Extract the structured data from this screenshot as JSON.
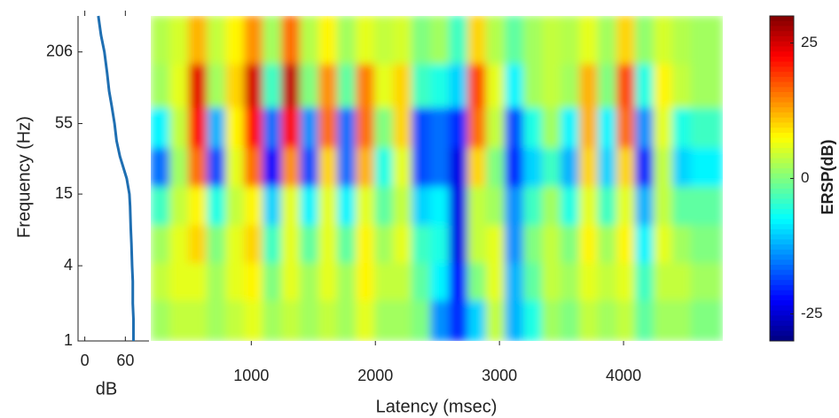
{
  "chart_data": [
    {
      "type": "line",
      "xlabel": "dB",
      "ylabel": "Frequency (Hz)",
      "xlim": [
        -10,
        95
      ],
      "xticks": [
        0,
        60
      ],
      "ylim": [
        1,
        400
      ],
      "yticks": [
        1,
        4,
        15,
        55,
        206
      ],
      "ylog": true,
      "y": [
        1,
        1.5,
        2,
        3,
        4,
        6,
        8,
        12,
        15,
        20,
        30,
        40,
        55,
        75,
        100,
        140,
        206,
        280,
        400
      ],
      "series": [
        {
          "color": "#1f6fb2",
          "values": [
            72,
            72,
            71,
            71,
            70,
            69,
            68,
            67,
            66,
            62,
            52,
            47,
            44,
            40,
            36,
            33,
            29,
            24,
            20
          ]
        }
      ]
    },
    {
      "type": "heatmap",
      "xlabel": "Latency (msec)",
      "xlim": [
        190,
        4800
      ],
      "xticks": [
        1000,
        2000,
        3000,
        4000
      ],
      "ylim": [
        1,
        400
      ],
      "ylog": true,
      "x": [
        270,
        420,
        570,
        720,
        870,
        1020,
        1170,
        1320,
        1470,
        1620,
        1770,
        1920,
        2070,
        2220,
        2370,
        2520,
        2670,
        2820,
        2970,
        3120,
        3270,
        3420,
        3570,
        3720,
        3870,
        4020,
        4170,
        4320,
        4470,
        4620
      ],
      "y": [
        1.5,
        3,
        6,
        12,
        25,
        50,
        110,
        250
      ],
      "z": [
        [
          2,
          4,
          4,
          2,
          4,
          6,
          2,
          4,
          2,
          4,
          2,
          6,
          2,
          2,
          0,
          -14,
          -20,
          -10,
          4,
          -12,
          -6,
          2,
          0,
          4,
          2,
          4,
          -2,
          2,
          2,
          0
        ],
        [
          4,
          6,
          6,
          2,
          6,
          8,
          0,
          6,
          2,
          6,
          2,
          8,
          4,
          4,
          -2,
          -8,
          -22,
          0,
          6,
          -12,
          -2,
          4,
          2,
          6,
          4,
          6,
          -4,
          4,
          4,
          2
        ],
        [
          2,
          6,
          10,
          0,
          6,
          10,
          -4,
          6,
          -2,
          6,
          -2,
          8,
          2,
          6,
          -4,
          -6,
          -24,
          4,
          6,
          -14,
          0,
          4,
          0,
          8,
          2,
          8,
          -8,
          6,
          2,
          0
        ],
        [
          -4,
          4,
          8,
          -6,
          4,
          8,
          -10,
          6,
          -8,
          6,
          -8,
          6,
          -2,
          4,
          -10,
          -8,
          -24,
          4,
          2,
          -14,
          -4,
          2,
          -6,
          6,
          -4,
          6,
          -12,
          4,
          -2,
          -2
        ],
        [
          -16,
          2,
          16,
          -18,
          6,
          16,
          -22,
          14,
          -18,
          10,
          -16,
          12,
          -6,
          6,
          -18,
          -16,
          -24,
          10,
          0,
          -20,
          -10,
          -4,
          -12,
          10,
          -10,
          10,
          -20,
          4,
          -10,
          -8
        ],
        [
          -8,
          4,
          22,
          -12,
          8,
          22,
          -16,
          22,
          -14,
          16,
          -16,
          16,
          0,
          10,
          -18,
          -16,
          -20,
          16,
          4,
          -18,
          -6,
          2,
          -8,
          12,
          -8,
          16,
          -14,
          6,
          -6,
          -4
        ],
        [
          2,
          6,
          24,
          2,
          10,
          25,
          -4,
          26,
          0,
          14,
          -2,
          15,
          6,
          10,
          -4,
          -6,
          -10,
          18,
          6,
          -8,
          2,
          4,
          2,
          12,
          0,
          18,
          -6,
          8,
          4,
          2
        ],
        [
          3,
          5,
          12,
          4,
          8,
          14,
          2,
          16,
          3,
          8,
          2,
          6,
          4,
          5,
          0,
          2,
          -4,
          10,
          3,
          -2,
          2,
          4,
          3,
          6,
          2,
          10,
          1,
          5,
          3,
          2
        ]
      ],
      "colorscale": "jet",
      "clim": [
        -30,
        30
      ],
      "cticks": [
        -25,
        0,
        25
      ],
      "clabel": "ERSP(dB)"
    }
  ]
}
